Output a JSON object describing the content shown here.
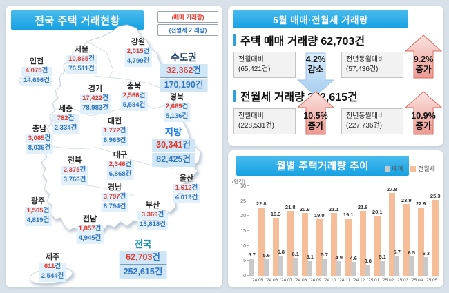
{
  "colors": {
    "banner_blue": "#16a1e2",
    "sale_red": "#e23a2e",
    "rent_blue": "#2f74c0",
    "bar_gray": "#c9c9c9",
    "bar_orange": "#f5bd98",
    "highlight_bg": "#cfe6f6",
    "value_bg": "#e1f0fa",
    "up_arrow": "#eb9a91",
    "down_arrow": "#a6cdf0"
  },
  "map_panel": {
    "title": "전국 주택 거래현황",
    "legend": {
      "sale": "(매매 거래량)",
      "rent": "(전월세 거래량)"
    },
    "unit_suffix": "건",
    "regions": [
      {
        "id": "incheon",
        "name": "인천",
        "sale": "4,075",
        "rent": "14,696",
        "highlight": false
      },
      {
        "id": "seoul",
        "name": "서울",
        "sale": "10,865",
        "rent": "76,511",
        "highlight": false
      },
      {
        "id": "gangwon",
        "name": "강원",
        "sale": "2,015",
        "rent": "4,799",
        "highlight": false
      },
      {
        "id": "sudogwon",
        "name": "수도권",
        "sale": "32,362",
        "rent": "170,190",
        "highlight": true,
        "name_color": "#17375e"
      },
      {
        "id": "gyeonggi",
        "name": "경기",
        "sale": "17,422",
        "rent": "78,983",
        "highlight": false
      },
      {
        "id": "chungbuk",
        "name": "충북",
        "sale": "2,566",
        "rent": "5,584",
        "highlight": false
      },
      {
        "id": "gyeongbuk",
        "name": "경북",
        "sale": "2,669",
        "rent": "5,136",
        "highlight": false
      },
      {
        "id": "sejong",
        "name": "세종",
        "sale": "782",
        "rent": "2,334",
        "highlight": false
      },
      {
        "id": "daejeon",
        "name": "대전",
        "sale": "1,772",
        "rent": "6,963",
        "highlight": false
      },
      {
        "id": "chungnam",
        "name": "충남",
        "sale": "3,065",
        "rent": "8,036",
        "highlight": false
      },
      {
        "id": "jibang",
        "name": "지방",
        "sale": "30,341",
        "rent": "82,425",
        "highlight": true,
        "name_color": "#1d7ff0"
      },
      {
        "id": "jeonbuk",
        "name": "전북",
        "sale": "2,375",
        "rent": "3,766",
        "highlight": false
      },
      {
        "id": "daegu",
        "name": "대구",
        "sale": "2,346",
        "rent": "6,868",
        "highlight": false
      },
      {
        "id": "ulsan",
        "name": "울산",
        "sale": "1,612",
        "rent": "4,019",
        "highlight": false
      },
      {
        "id": "gyeongnam",
        "name": "경남",
        "sale": "3,797",
        "rent": "8,794",
        "highlight": false
      },
      {
        "id": "gwangju",
        "name": "광주",
        "sale": "1,505",
        "rent": "4,819",
        "highlight": false
      },
      {
        "id": "busan",
        "name": "부산",
        "sale": "3,369",
        "rent": "13,818",
        "highlight": false
      },
      {
        "id": "jeonnam",
        "name": "전남",
        "sale": "1,857",
        "rent": "4,945",
        "highlight": false
      },
      {
        "id": "jeonguk",
        "name": "전국",
        "sale": "62,703",
        "rent": "252,615",
        "highlight": true,
        "name_color": "#1898a8"
      },
      {
        "id": "jeju",
        "name": "제주",
        "sale": "611",
        "rent": "2,544",
        "highlight": false
      }
    ]
  },
  "summary_panel": {
    "title": "5월 매매·전월세 거래량",
    "sections": [
      {
        "heading": "주택 매매 거래량 62,703건",
        "stats": [
          {
            "label": "전월대비",
            "base": "(65,421건)",
            "pct": "4.2%",
            "dir_label": "감소",
            "direction": "down"
          },
          {
            "label": "전년동월대비",
            "base": "(57,436건)",
            "pct": "9.2%",
            "dir_label": "증가",
            "direction": "up"
          }
        ]
      },
      {
        "heading": "전월세 거래량 252,615건",
        "stats": [
          {
            "label": "전월대비",
            "base": "(228,531건)",
            "pct": "10.5%",
            "dir_label": "증가",
            "direction": "up"
          },
          {
            "label": "전년동월대비",
            "base": "(227,736건)",
            "pct": "10.9%",
            "dir_label": "증가",
            "direction": "up"
          }
        ]
      }
    ]
  },
  "chart_panel": {
    "title": "월별 주택거래량 추이",
    "unit_label": "(만건)",
    "legend": [
      {
        "label": "매매",
        "color": "#c9c9c9"
      },
      {
        "label": "전월세",
        "color": "#f5bd98"
      }
    ]
  },
  "chart_data": {
    "type": "bar",
    "title": "월별 주택거래량 추이",
    "ylabel": "(만건)",
    "ylim": [
      0,
      30
    ],
    "yticks": [
      0,
      5,
      10,
      15,
      20,
      25,
      30
    ],
    "grid": false,
    "legend_position": "top-right",
    "categories": [
      "'24.05",
      "'24.06",
      "'24.07",
      "'24.08",
      "'24.09",
      "'24.10",
      "'24.11",
      "'24.12",
      "'25.01",
      "'25.02",
      "'25.03",
      "'25.04",
      "'25.05"
    ],
    "series": [
      {
        "name": "매매",
        "values": [
          5.7,
          5.6,
          6.8,
          6.1,
          5.1,
          5.7,
          4.9,
          4.6,
          3.8,
          5.1,
          6.7,
          6.5,
          6.3
        ]
      },
      {
        "name": "전월세",
        "values": [
          22.8,
          19.3,
          21.8,
          20.9,
          19.0,
          21.1,
          19.1,
          21.8,
          20.1,
          27.8,
          23.9,
          22.9,
          25.3
        ]
      }
    ]
  }
}
